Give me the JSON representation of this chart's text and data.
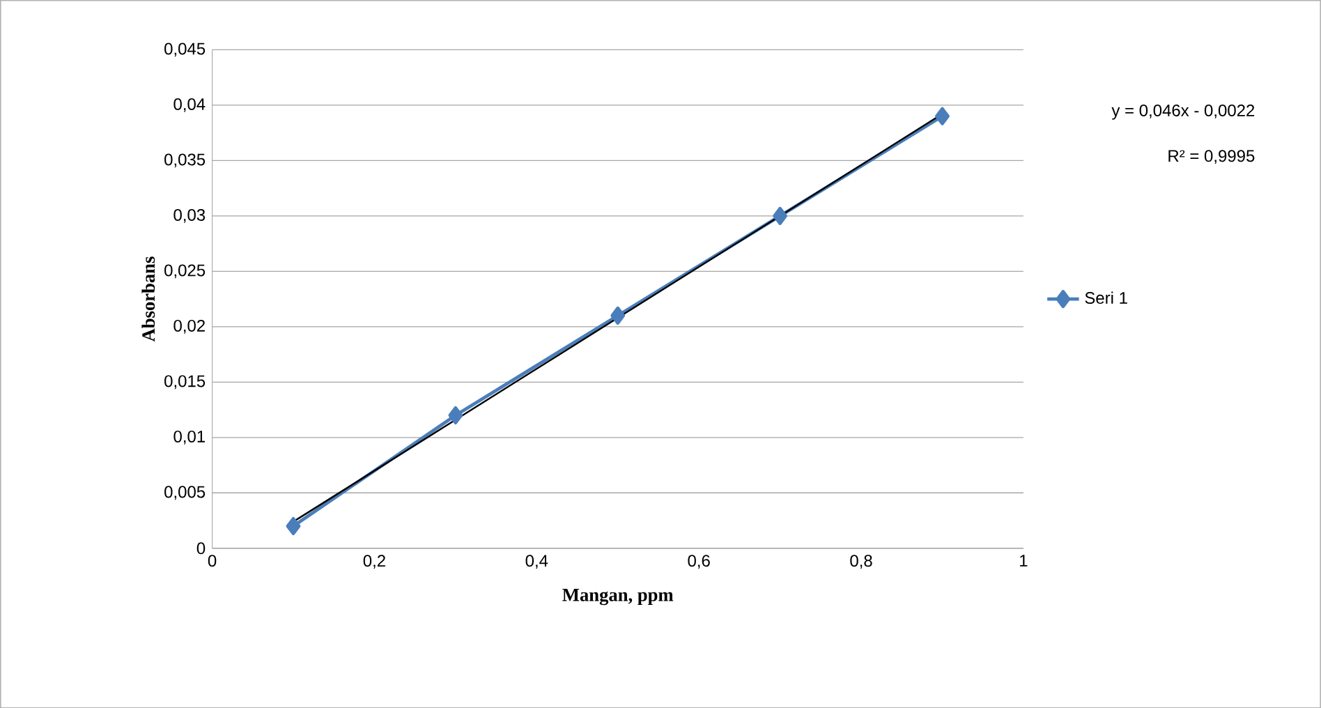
{
  "chart_data": {
    "type": "line",
    "xlabel": "Mangan, ppm",
    "ylabel": "Absorbans",
    "xlim": [
      0,
      1
    ],
    "ylim": [
      0,
      0.045
    ],
    "xticks": [
      0,
      {
        "value": 0.2,
        "label": "0,2"
      },
      {
        "value": 0.4,
        "label": "0,4"
      },
      {
        "value": 0.6,
        "label": "0,6"
      },
      {
        "value": 0.8,
        "label": "0,8"
      },
      1
    ],
    "yticks": [
      0,
      {
        "value": 0.005,
        "label": "0,005"
      },
      {
        "value": 0.01,
        "label": "0,01"
      },
      {
        "value": 0.015,
        "label": "0,015"
      },
      {
        "value": 0.02,
        "label": "0,02"
      },
      {
        "value": 0.025,
        "label": "0,025"
      },
      {
        "value": 0.03,
        "label": "0,03"
      },
      {
        "value": 0.035,
        "label": "0,035"
      },
      {
        "value": 0.04,
        "label": "0,04"
      },
      {
        "value": 0.045,
        "label": "0,045"
      }
    ],
    "grid": "y",
    "legend": "right",
    "series": [
      {
        "name": "Seri 1",
        "color": "#4a7ebb",
        "marker": "diamond",
        "x": [
          0.1,
          0.3,
          0.5,
          0.7,
          0.9
        ],
        "values": [
          0.002,
          0.012,
          0.021,
          0.03,
          0.039
        ]
      },
      {
        "type": "line",
        "color": "#000000",
        "marker": "none",
        "x": [
          0.1,
          0.9
        ],
        "values": [
          0.0024,
          0.0392
        ]
      }
    ],
    "annotations": [
      "y = 0,046x - 0,0022",
      "R² = 0,9995"
    ]
  }
}
